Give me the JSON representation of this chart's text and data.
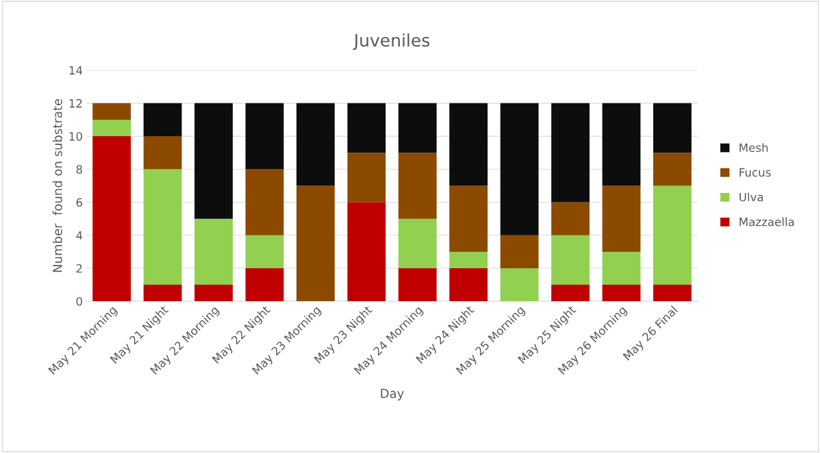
{
  "chart_data": {
    "type": "bar",
    "title": "Juveniles",
    "xlabel": "Day",
    "ylabel": "Number  found on substrate",
    "categories": [
      "May 21 Morning",
      "May 21 Night",
      "May 22 Morning",
      "May 22 Night",
      "May 23 Morning",
      "May 23 Night",
      "May 24 Morning",
      "May 24 Night",
      "May 25 Morning",
      "May 25 Night",
      "May 26 Morning",
      "May 26 Final"
    ],
    "stacked": true,
    "series": [
      {
        "name": "Mazzaella",
        "color": "#c00000",
        "values": [
          10,
          1,
          1,
          2,
          0,
          6,
          2,
          2,
          0,
          1,
          1,
          1
        ]
      },
      {
        "name": "Ulva",
        "color": "#92d050",
        "values": [
          1,
          7,
          4,
          2,
          0,
          0,
          3,
          1,
          2,
          3,
          2,
          6
        ]
      },
      {
        "name": "Fucus",
        "color": "#8b4a00",
        "values": [
          1,
          2,
          0,
          4,
          7,
          3,
          4,
          4,
          2,
          2,
          4,
          2
        ]
      },
      {
        "name": "Mesh",
        "color": "#0d0d0d",
        "values": [
          0,
          2,
          7,
          4,
          5,
          3,
          3,
          5,
          8,
          6,
          5,
          3
        ]
      }
    ],
    "ylim": [
      0,
      14
    ],
    "yticks": [
      0,
      2,
      4,
      6,
      8,
      10,
      12,
      14
    ],
    "grid": "y",
    "legend": "right"
  }
}
